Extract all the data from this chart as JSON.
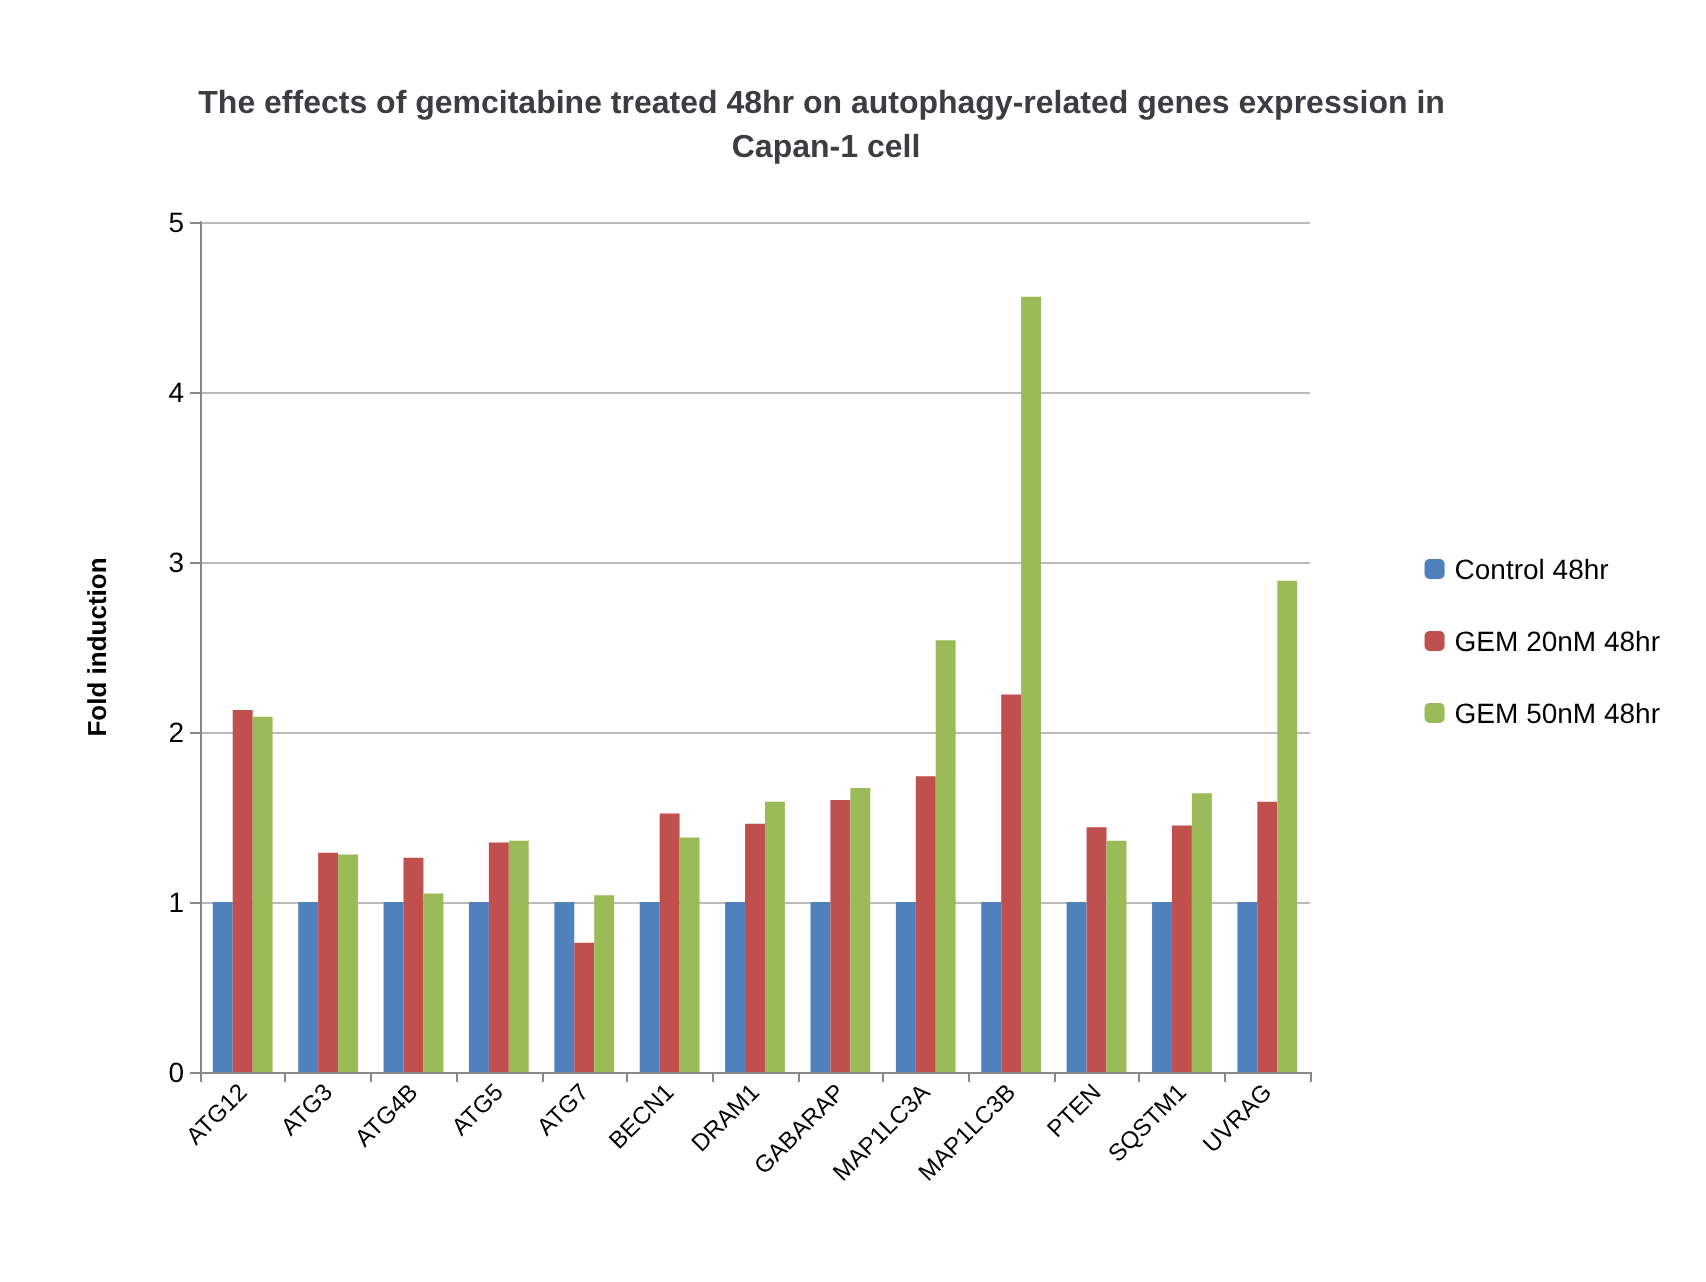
{
  "chart_data": {
    "type": "bar",
    "title": "The effects of gemcitabine treated 48hr on autophagy-related genes expression in Capan-1 cell",
    "ylabel": "Fold induction",
    "categories": [
      "ATG12",
      "ATG3",
      "ATG4B",
      "ATG5",
      "ATG7",
      "BECN1",
      "DRAM1",
      "GABARAP",
      "MAP1LC3A",
      "MAP1LC3B",
      "PTEN",
      "SQSTM1",
      "UVRAG"
    ],
    "series": [
      {
        "name": "Control 48hr",
        "color": "#4f81bd",
        "values": [
          1,
          1,
          1,
          1,
          1,
          1,
          1,
          1,
          1,
          1,
          1,
          1,
          1
        ]
      },
      {
        "name": "GEM 20nM 48hr",
        "color": "#c0504d",
        "values": [
          2.13,
          1.29,
          1.26,
          1.35,
          0.76,
          1.52,
          1.46,
          1.6,
          1.74,
          2.22,
          1.44,
          1.45,
          1.59
        ]
      },
      {
        "name": "GEM 50nM 48hr",
        "color": "#9bbb59",
        "values": [
          2.09,
          1.28,
          1.05,
          1.36,
          1.04,
          1.38,
          1.59,
          1.67,
          2.54,
          4.56,
          1.36,
          1.64,
          2.89
        ]
      }
    ],
    "ylim": [
      0,
      5
    ],
    "yticks": [
      0,
      1,
      2,
      3,
      4,
      5
    ],
    "grid": "y",
    "legend": "right"
  }
}
